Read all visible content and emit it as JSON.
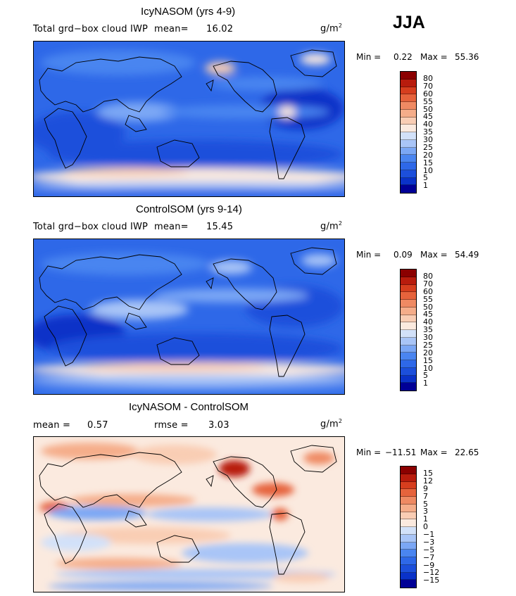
{
  "season": "JJA",
  "colors": {
    "pos_scale": [
      "#000096",
      "#0a32c8",
      "#1c4fdb",
      "#2e68e8",
      "#4a85f0",
      "#7ba7f5",
      "#a9c5f7",
      "#d2e1f9",
      "#fbeadf",
      "#f9cdb4",
      "#f5ad8a",
      "#ef8a63",
      "#e6633c",
      "#d63e1e",
      "#b81c0d",
      "#8b0000"
    ],
    "diff_scale": [
      "#000096",
      "#0a32c8",
      "#1c4fdb",
      "#2e68e8",
      "#4a85f0",
      "#7ba7f5",
      "#a9c5f7",
      "#d2e1f9",
      "#fbeadf",
      "#f9cdb4",
      "#f5ad8a",
      "#ef8a63",
      "#e6633c",
      "#d63e1e",
      "#b81c0d",
      "#8b0000"
    ]
  },
  "panels": [
    {
      "title": "IcyNASOM (yrs 4-9)",
      "variable": "Total grd−box cloud IWP",
      "stat1_label": "mean=",
      "stat1_value": "16.02",
      "units_base": "g/m",
      "units_exp": "2",
      "min_label": "Min =",
      "min_value": "0.22",
      "max_label": "Max =",
      "max_value": "55.36",
      "colorbar_labels": [
        "80",
        "70",
        "60",
        "55",
        "50",
        "45",
        "40",
        "35",
        "30",
        "25",
        "20",
        "15",
        "10",
        "5",
        "1"
      ]
    },
    {
      "title": "ControlSOM (yrs 9-14)",
      "variable": "Total grd−box cloud IWP",
      "stat1_label": "mean=",
      "stat1_value": "15.45",
      "units_base": "g/m",
      "units_exp": "2",
      "min_label": "Min =",
      "min_value": "0.09",
      "max_label": "Max =",
      "max_value": "54.49",
      "colorbar_labels": [
        "80",
        "70",
        "60",
        "55",
        "50",
        "45",
        "40",
        "35",
        "30",
        "25",
        "20",
        "15",
        "10",
        "5",
        "1"
      ]
    },
    {
      "title": "IcyNASOM - ControlSOM",
      "stat1_label": "mean =",
      "stat1_value": "0.57",
      "stat2_label": "rmse =",
      "stat2_value": "3.03",
      "units_base": "g/m",
      "units_exp": "2",
      "min_label": "Min =",
      "min_value": "−11.51",
      "max_label": "Max =",
      "max_value": "22.65",
      "colorbar_labels": [
        "15",
        "12",
        "9",
        "7",
        "5",
        "3",
        "1",
        "0",
        "−1",
        "−3",
        "−5",
        "−7",
        "−9",
        "−12",
        "−15"
      ]
    }
  ]
}
